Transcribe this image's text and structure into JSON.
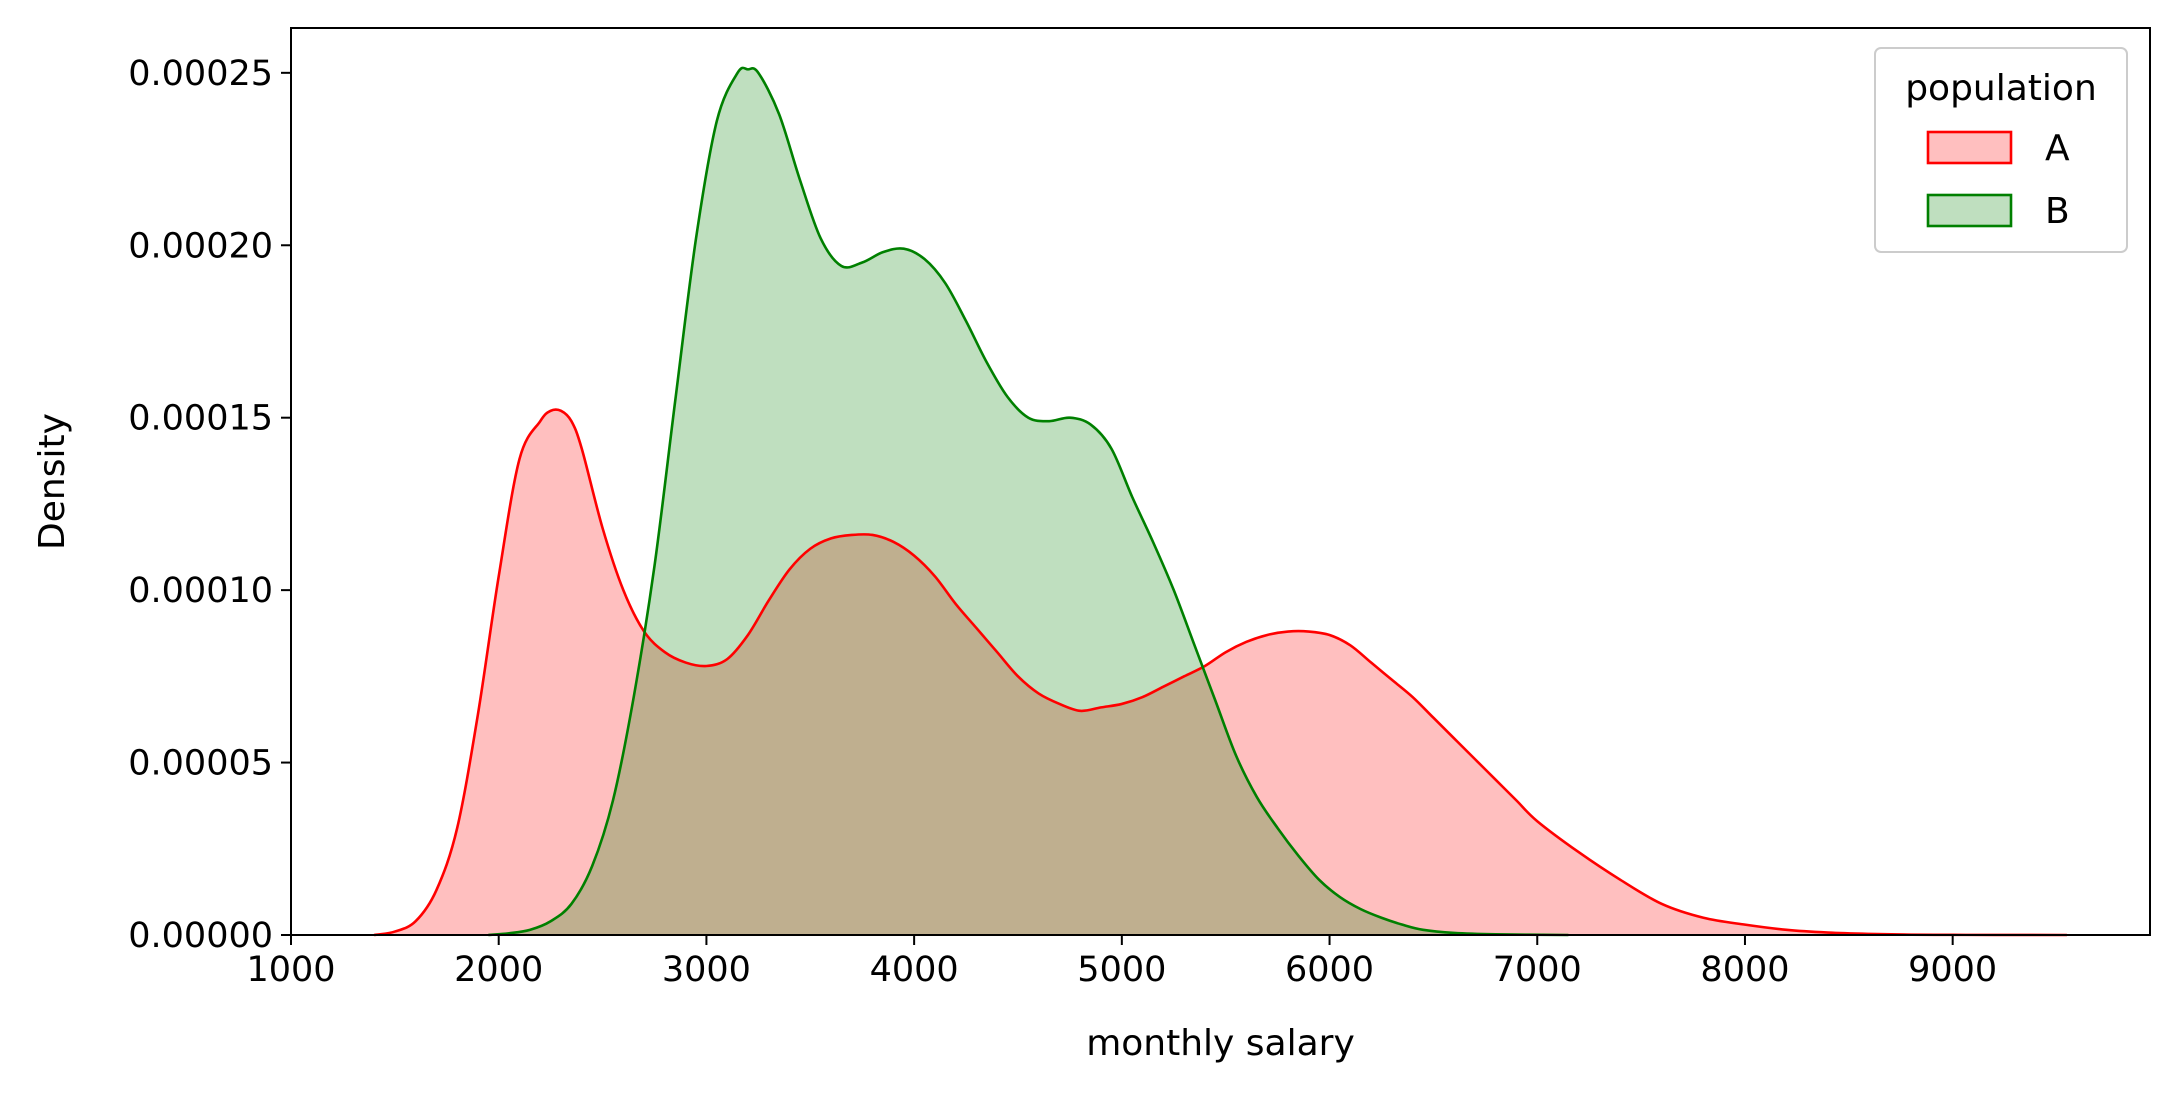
{
  "chart_data": {
    "type": "area",
    "subtype": "kde",
    "xlabel": "monthly salary",
    "ylabel": "Density",
    "xlim": [
      1000,
      9950
    ],
    "ylim": [
      0,
      0.000263
    ],
    "x_ticks": [
      1000,
      2000,
      3000,
      4000,
      5000,
      6000,
      7000,
      8000,
      9000
    ],
    "x_tick_labels": [
      "1000",
      "2000",
      "3000",
      "4000",
      "5000",
      "6000",
      "7000",
      "8000",
      "9000"
    ],
    "y_ticks": [
      0,
      5e-05,
      0.0001,
      0.00015,
      0.0002,
      0.00025
    ],
    "y_tick_labels": [
      "0.00000",
      "0.00005",
      "0.00010",
      "0.00015",
      "0.00020",
      "0.00025"
    ],
    "grid": false,
    "legend": {
      "title": "population",
      "placement": "top-right",
      "entries": [
        "A",
        "B"
      ]
    },
    "series": [
      {
        "name": "A",
        "color": "#ff0000",
        "fill": "#ffbfbf",
        "x": [
          1400,
          1500,
          1600,
          1700,
          1800,
          1900,
          2000,
          2100,
          2200,
          2250,
          2300,
          2350,
          2400,
          2500,
          2600,
          2700,
          2800,
          2900,
          3000,
          3100,
          3200,
          3300,
          3400,
          3500,
          3600,
          3700,
          3800,
          3900,
          4000,
          4100,
          4200,
          4300,
          4400,
          4500,
          4600,
          4700,
          4800,
          4900,
          5000,
          5100,
          5200,
          5300,
          5400,
          5500,
          5600,
          5700,
          5800,
          5900,
          6000,
          6100,
          6200,
          6300,
          6400,
          6500,
          6600,
          6700,
          6800,
          6900,
          7000,
          7200,
          7400,
          7600,
          7800,
          8000,
          8200,
          8400,
          8600,
          8800,
          9000,
          9200,
          9550
        ],
        "y": [
          0,
          1e-06,
          4e-06,
          1.3e-05,
          3.1e-05,
          6.4e-05,
          0.000104,
          0.000138,
          0.000149,
          0.000152,
          0.000152,
          0.000149,
          0.000141,
          0.000118,
          0.0001,
          8.8e-05,
          8.2e-05,
          7.9e-05,
          7.8e-05,
          8e-05,
          8.7e-05,
          9.7e-05,
          0.000106,
          0.000112,
          0.000115,
          0.000116,
          0.000116,
          0.000114,
          0.00011,
          0.000104,
          9.6e-05,
          8.9e-05,
          8.2e-05,
          7.5e-05,
          7e-05,
          6.7e-05,
          6.5e-05,
          6.6e-05,
          6.7e-05,
          6.9e-05,
          7.2e-05,
          7.5e-05,
          7.8e-05,
          8.2e-05,
          8.5e-05,
          8.7e-05,
          8.8e-05,
          8.8e-05,
          8.7e-05,
          8.4e-05,
          7.9e-05,
          7.4e-05,
          6.9e-05,
          6.3e-05,
          5.7e-05,
          5.1e-05,
          4.5e-05,
          3.9e-05,
          3.3e-05,
          2.4e-05,
          1.6e-05,
          9e-06,
          5e-06,
          3e-06,
          1.5e-06,
          7e-07,
          3e-07,
          1e-07,
          5e-08,
          2e-08,
          0
        ]
      },
      {
        "name": "B",
        "color": "#008000",
        "fill": "#bfdfbf",
        "x": [
          1950,
          2050,
          2150,
          2250,
          2350,
          2450,
          2550,
          2650,
          2750,
          2850,
          2950,
          3050,
          3150,
          3200,
          3250,
          3350,
          3450,
          3550,
          3650,
          3750,
          3850,
          3950,
          4050,
          4150,
          4250,
          4350,
          4450,
          4550,
          4650,
          4750,
          4850,
          4950,
          5050,
          5150,
          5250,
          5350,
          5450,
          5550,
          5650,
          5750,
          5850,
          5950,
          6050,
          6150,
          6250,
          6350,
          6450,
          6600,
          6800,
          7150
        ],
        "y": [
          0,
          5e-07,
          1.5e-06,
          4e-06,
          9e-06,
          2e-05,
          3.9e-05,
          6.9e-05,
          0.000107,
          0.000155,
          0.000202,
          0.000236,
          0.00025,
          0.000251,
          0.00025,
          0.000238,
          0.000219,
          0.000202,
          0.000194,
          0.000195,
          0.000198,
          0.000199,
          0.000196,
          0.000189,
          0.000178,
          0.000166,
          0.000156,
          0.00015,
          0.000149,
          0.00015,
          0.000148,
          0.000141,
          0.000127,
          0.000114,
          0.0001,
          8.4e-05,
          6.8e-05,
          5.2e-05,
          4e-05,
          3.1e-05,
          2.3e-05,
          1.6e-05,
          1.1e-05,
          7.5e-06,
          5e-06,
          3e-06,
          1.5e-06,
          6e-07,
          2e-07,
          0
        ]
      }
    ]
  }
}
